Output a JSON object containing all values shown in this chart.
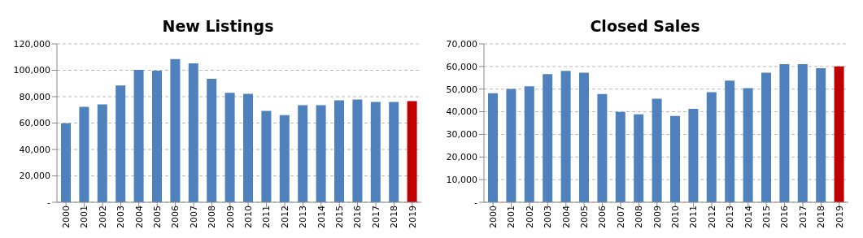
{
  "chart_data": [
    {
      "type": "bar",
      "title": "New Listings",
      "categories": [
        "2000",
        "2001",
        "2002",
        "2003",
        "2004",
        "2005",
        "2006",
        "2007",
        "2008",
        "2009",
        "2010",
        "2011",
        "2012",
        "2013",
        "2014",
        "2015",
        "2016",
        "2017",
        "2018",
        "2019"
      ],
      "values": [
        59800,
        72300,
        74100,
        88500,
        100300,
        99700,
        108400,
        105300,
        93500,
        82900,
        82200,
        69200,
        66000,
        73500,
        73500,
        77300,
        77900,
        76000,
        76000,
        76600
      ],
      "colors": [
        "#4f81bd",
        "#4f81bd",
        "#4f81bd",
        "#4f81bd",
        "#4f81bd",
        "#4f81bd",
        "#4f81bd",
        "#4f81bd",
        "#4f81bd",
        "#4f81bd",
        "#4f81bd",
        "#4f81bd",
        "#4f81bd",
        "#4f81bd",
        "#4f81bd",
        "#4f81bd",
        "#4f81bd",
        "#4f81bd",
        "#4f81bd",
        "#c00000"
      ],
      "ylim": [
        0,
        120000
      ],
      "yticks": [
        {
          "value": 0,
          "label": "-"
        },
        {
          "value": 20000,
          "label": "20,000"
        },
        {
          "value": 40000,
          "label": "40,000"
        },
        {
          "value": 60000,
          "label": "60,000"
        },
        {
          "value": 80000,
          "label": "80,000"
        },
        {
          "value": 100000,
          "label": "100,000"
        },
        {
          "value": 120000,
          "label": "120,000"
        }
      ],
      "grid": "y"
    },
    {
      "type": "bar",
      "title": "Closed Sales",
      "categories": [
        "2000",
        "2001",
        "2002",
        "2003",
        "2004",
        "2005",
        "2006",
        "2007",
        "2008",
        "2009",
        "2010",
        "2011",
        "2012",
        "2013",
        "2014",
        "2015",
        "2016",
        "2017",
        "2018",
        "2019"
      ],
      "values": [
        48200,
        50100,
        51200,
        56600,
        58100,
        57300,
        47800,
        39900,
        38900,
        45800,
        38100,
        41300,
        48600,
        53800,
        50400,
        57300,
        61000,
        61000,
        59200,
        60000
      ],
      "colors": [
        "#4f81bd",
        "#4f81bd",
        "#4f81bd",
        "#4f81bd",
        "#4f81bd",
        "#4f81bd",
        "#4f81bd",
        "#4f81bd",
        "#4f81bd",
        "#4f81bd",
        "#4f81bd",
        "#4f81bd",
        "#4f81bd",
        "#4f81bd",
        "#4f81bd",
        "#4f81bd",
        "#4f81bd",
        "#4f81bd",
        "#4f81bd",
        "#c00000"
      ],
      "ylim": [
        0,
        70000
      ],
      "yticks": [
        {
          "value": 0,
          "label": "-"
        },
        {
          "value": 10000,
          "label": "10,000"
        },
        {
          "value": 20000,
          "label": "20,000"
        },
        {
          "value": 30000,
          "label": "30,000"
        },
        {
          "value": 40000,
          "label": "40,000"
        },
        {
          "value": 50000,
          "label": "50,000"
        },
        {
          "value": 60000,
          "label": "60,000"
        },
        {
          "value": 70000,
          "label": "70,000"
        }
      ],
      "grid": "y"
    }
  ]
}
